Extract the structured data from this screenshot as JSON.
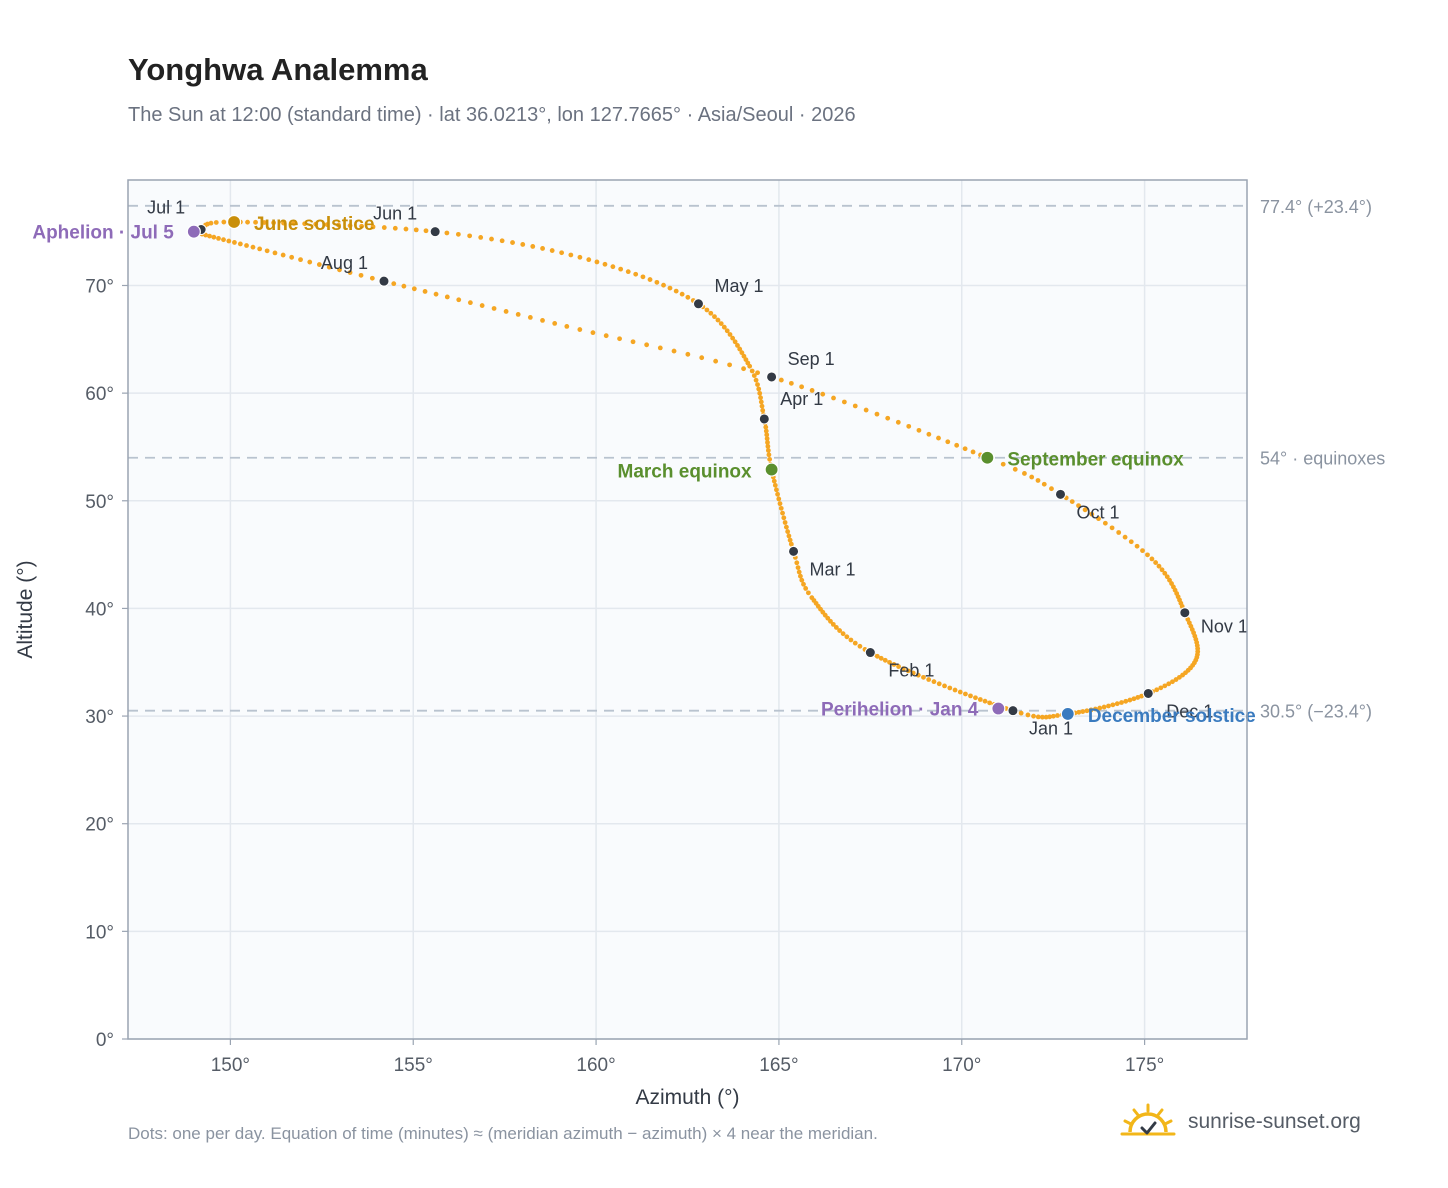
{
  "title": "Yonghwa Analemma",
  "subtitle": "The Sun at 12:00 (standard time) · lat 36.0213°, lon 127.7665° · Asia/Seoul · 2026",
  "footnote": "Dots: one per day. Equation of time (minutes) ≈ (meridian azimuth − azimuth) × 4 near the meridian.",
  "brand": {
    "text": "sunrise-sunset.org",
    "icon": "sun-logo-icon",
    "color": "#f2b619"
  },
  "colors": {
    "curve": "#f5a623",
    "month_marker": "#333a45",
    "solstice_june": "#c98f0a",
    "solstice_december": "#3a7bbf",
    "equinox": "#5a8f2e",
    "apsis": "#8e6bb8",
    "grid": "#e3e8ee",
    "plot_bg": "#f9fbfd",
    "reference_line": "#b9c3cf"
  },
  "chart_data": {
    "type": "scatter",
    "xlabel": "Azimuth (°)",
    "ylabel": "Altitude (°)",
    "xlim": [
      147.2,
      177.8
    ],
    "ylim": [
      0,
      79.8
    ],
    "xticks": [
      150,
      155,
      160,
      165,
      170,
      175
    ],
    "yticks": [
      0,
      10,
      20,
      30,
      40,
      50,
      60,
      70
    ],
    "x_tick_labels": [
      "150°",
      "155°",
      "160°",
      "165°",
      "170°",
      "175°"
    ],
    "y_tick_labels": [
      "0°",
      "10°",
      "20°",
      "30°",
      "40°",
      "50°",
      "60°",
      "70°"
    ],
    "grid": true,
    "reference_lines": [
      {
        "altitude": 77.4,
        "label": "77.4° (+23.4°)"
      },
      {
        "altitude": 54.0,
        "label": "54° · equinoxes"
      },
      {
        "altitude": 30.5,
        "label": "30.5° (−23.4°)"
      }
    ],
    "months": [
      {
        "label": "Jan 1",
        "az": 171.4,
        "alt": 30.5
      },
      {
        "label": "Feb 1",
        "az": 167.5,
        "alt": 35.9
      },
      {
        "label": "Mar 1",
        "az": 165.4,
        "alt": 45.3
      },
      {
        "label": "Apr 1",
        "az": 164.6,
        "alt": 57.6
      },
      {
        "label": "May 1",
        "az": 162.8,
        "alt": 68.3
      },
      {
        "label": "Jun 1",
        "az": 155.6,
        "alt": 75.0
      },
      {
        "label": "Jul 1",
        "az": 149.2,
        "alt": 75.2
      },
      {
        "label": "Aug 1",
        "az": 154.2,
        "alt": 70.4
      },
      {
        "label": "Sep 1",
        "az": 164.8,
        "alt": 61.5
      },
      {
        "label": "Oct 1",
        "az": 172.7,
        "alt": 50.6
      },
      {
        "label": "Nov 1",
        "az": 176.1,
        "alt": 39.6
      },
      {
        "label": "Dec 1",
        "az": 175.1,
        "alt": 32.1
      }
    ],
    "events": [
      {
        "label": "Perihelion · Jan 4",
        "az": 171.0,
        "alt": 30.7,
        "kind": "apsis"
      },
      {
        "label": "March equinox",
        "az": 164.8,
        "alt": 52.9,
        "kind": "equinox"
      },
      {
        "label": "June solstice",
        "az": 150.1,
        "alt": 75.9,
        "kind": "solstice_june"
      },
      {
        "label": "Aphelion · Jul 5",
        "az": 149.0,
        "alt": 75.0,
        "kind": "apsis"
      },
      {
        "label": "September equinox",
        "az": 170.7,
        "alt": 54.0,
        "kind": "equinox"
      },
      {
        "label": "December solstice",
        "az": 172.9,
        "alt": 30.2,
        "kind": "solstice_december"
      }
    ],
    "path": [
      {
        "day": 1,
        "az": 171.4,
        "alt": 30.5
      },
      {
        "day": 32,
        "az": 167.5,
        "alt": 35.9
      },
      {
        "day": 50,
        "az": 165.9,
        "alt": 41.0
      },
      {
        "day": 60,
        "az": 165.4,
        "alt": 45.3
      },
      {
        "day": 79,
        "az": 164.8,
        "alt": 52.9
      },
      {
        "day": 91,
        "az": 164.6,
        "alt": 57.6
      },
      {
        "day": 103,
        "az": 164.2,
        "alt": 62.5
      },
      {
        "day": 121,
        "az": 162.8,
        "alt": 68.3
      },
      {
        "day": 137,
        "az": 159.8,
        "alt": 72.4
      },
      {
        "day": 152,
        "az": 155.6,
        "alt": 75.0
      },
      {
        "day": 172,
        "az": 150.1,
        "alt": 75.9
      },
      {
        "day": 182,
        "az": 149.2,
        "alt": 75.2
      },
      {
        "day": 186,
        "az": 149.0,
        "alt": 75.0
      },
      {
        "day": 200,
        "az": 150.8,
        "alt": 73.4
      },
      {
        "day": 213,
        "az": 154.2,
        "alt": 70.4
      },
      {
        "day": 229,
        "az": 159.2,
        "alt": 66.2
      },
      {
        "day": 244,
        "az": 164.8,
        "alt": 61.5
      },
      {
        "day": 266,
        "az": 170.7,
        "alt": 54.0
      },
      {
        "day": 274,
        "az": 172.7,
        "alt": 50.6
      },
      {
        "day": 289,
        "az": 175.2,
        "alt": 44.6
      },
      {
        "day": 305,
        "az": 176.1,
        "alt": 39.6
      },
      {
        "day": 320,
        "az": 176.4,
        "alt": 35.2
      },
      {
        "day": 335,
        "az": 175.1,
        "alt": 32.1
      },
      {
        "day": 355,
        "az": 172.9,
        "alt": 30.2
      },
      {
        "day": 366,
        "az": 171.4,
        "alt": 30.5
      }
    ]
  }
}
